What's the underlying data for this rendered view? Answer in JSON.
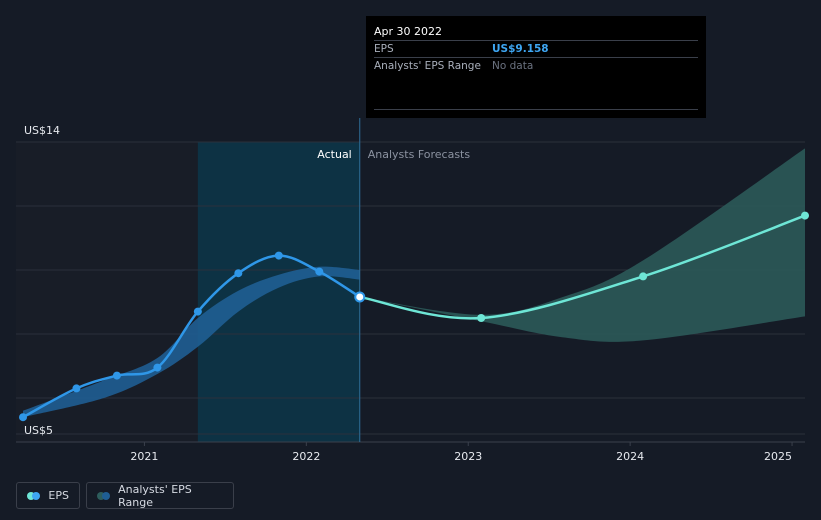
{
  "tooltip": {
    "date": "Apr 30 2022",
    "rows": [
      {
        "label": "EPS",
        "value": "US$9.158"
      },
      {
        "label": "Analysts' EPS Range",
        "value": "No data"
      }
    ]
  },
  "legend": [
    {
      "label": "EPS"
    },
    {
      "label": "Analysts' EPS Range"
    }
  ],
  "colors": {
    "background": "#151b26",
    "past_background": "#181d27",
    "highlight": "#0a3a4f",
    "eps_actual": "#2f97e8",
    "eps_forecast": "#6ee6d6",
    "range_actual": "#1f5e93",
    "range_forecast": "#2d5d5c"
  },
  "chart_data": {
    "type": "line",
    "ylim": [
      5,
      14
    ],
    "ytick_labels": [
      "US$14",
      "US$5"
    ],
    "xtick_labels": [
      "2021",
      "2022",
      "2023",
      "2024",
      "2025"
    ],
    "xtick_values": [
      2021,
      2022,
      2023,
      2024,
      2025
    ],
    "region_labels": [
      "Actual",
      "Analysts Forecasts"
    ],
    "grid": true,
    "legend_position": "bottom-left",
    "series": [
      {
        "name": "EPS",
        "kind": "actual",
        "x": [
          2020.25,
          2020.58,
          2020.83,
          2021.08,
          2021.33,
          2021.58,
          2021.83,
          2022.08,
          2022.33
        ],
        "y": [
          5.4,
          6.3,
          6.7,
          6.95,
          8.7,
          9.9,
          10.45,
          9.95,
          9.158
        ]
      },
      {
        "name": "EPS",
        "kind": "forecast",
        "x": [
          2022.33,
          2023.08,
          2024.08,
          2025.08
        ],
        "y": [
          9.158,
          8.5,
          9.8,
          11.7
        ]
      },
      {
        "name": "Analysts' EPS Range",
        "kind": "actual",
        "x": [
          2020.25,
          2020.75,
          2021.08,
          2021.33,
          2021.58,
          2021.83,
          2022.08,
          2022.33
        ],
        "low": [
          5.4,
          6.0,
          6.75,
          7.6,
          8.7,
          9.45,
          9.8,
          9.7
        ],
        "high": [
          5.6,
          6.55,
          7.25,
          8.5,
          9.35,
          9.85,
          10.1,
          10.0
        ]
      },
      {
        "name": "Analysts' EPS Range",
        "kind": "forecast",
        "x": [
          2022.33,
          2023.08,
          2023.58,
          2024.08,
          2025.08
        ],
        "low": [
          9.158,
          8.4,
          7.9,
          7.8,
          8.55
        ],
        "high": [
          9.158,
          8.6,
          9.15,
          10.3,
          13.8
        ]
      }
    ]
  }
}
